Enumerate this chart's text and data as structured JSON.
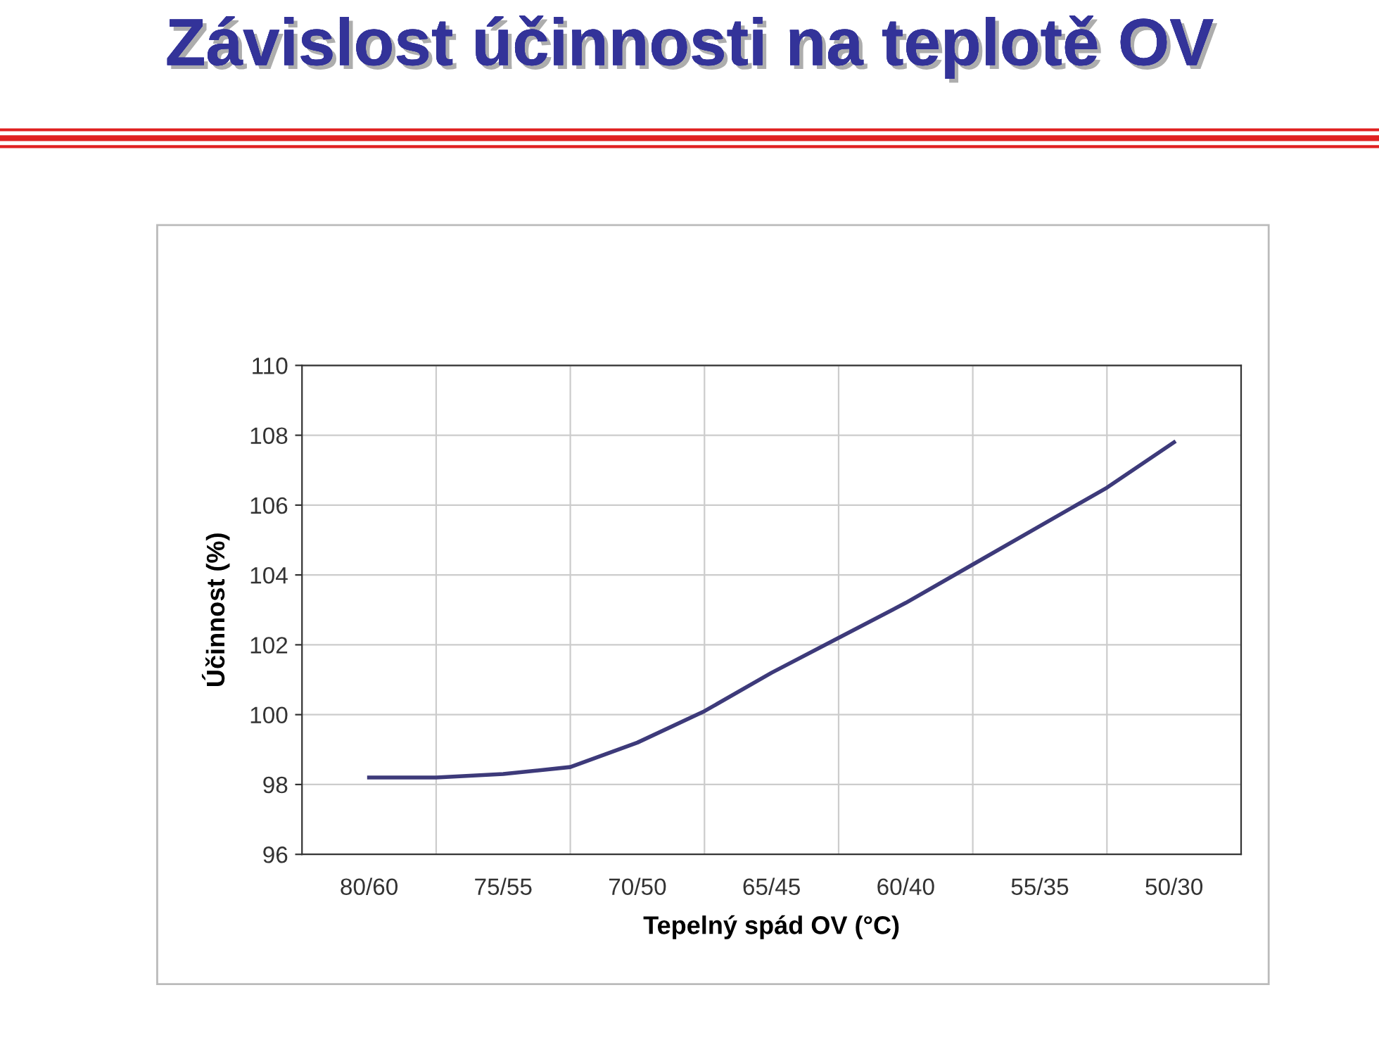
{
  "chart_data": {
    "type": "line",
    "title": "Závislost účinnosti na teplotě OV",
    "xlabel": "Tepelný spád OV (°C)",
    "ylabel": "Účinnost (%)",
    "categories": [
      "80/60",
      null,
      "75/55",
      null,
      "70/50",
      null,
      "65/45",
      null,
      "60/40",
      null,
      "55/35",
      null,
      "50/30"
    ],
    "series": [
      {
        "color": "#3d3a7a",
        "values": [
          98.2,
          98.2,
          98.3,
          98.5,
          99.2,
          100.1,
          101.2,
          102.2,
          103.2,
          104.3,
          105.4,
          106.5,
          107.8
        ]
      }
    ],
    "ylim": [
      96,
      110
    ],
    "yticks": [
      96,
      98,
      100,
      102,
      104,
      106,
      108,
      110
    ],
    "grid": true,
    "legend": false,
    "marker": "none",
    "line_style": "solid"
  }
}
